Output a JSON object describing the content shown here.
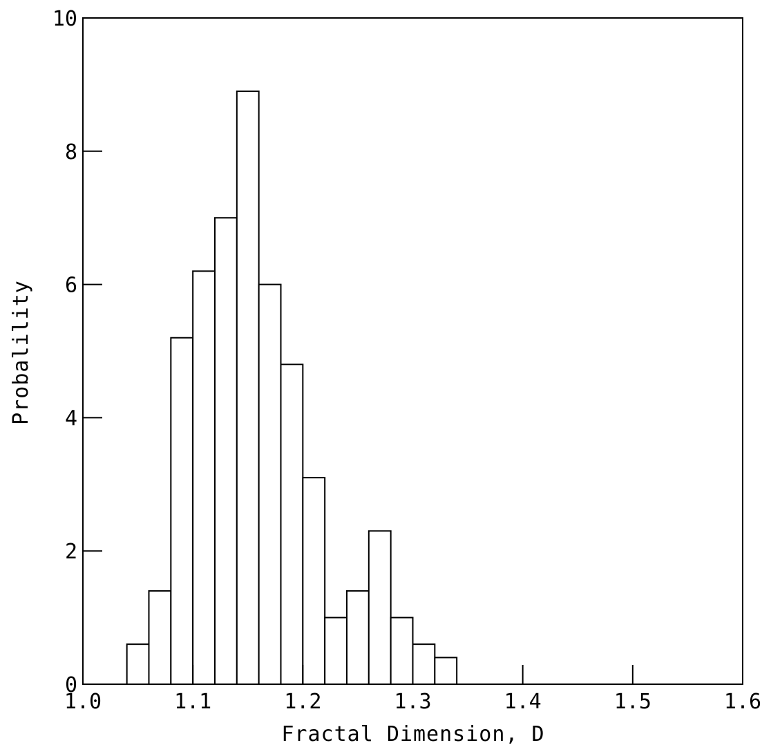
{
  "chart_data": {
    "type": "bar",
    "title": "",
    "xlabel": "Fractal Dimension, D",
    "ylabel": "Probalility",
    "xlim": [
      1.0,
      1.6
    ],
    "ylim": [
      0,
      10
    ],
    "xticks": [
      1.0,
      1.1,
      1.2,
      1.3,
      1.4,
      1.5,
      1.6
    ],
    "xtick_labels": [
      "1.0",
      "1.1",
      "1.2",
      "1.3",
      "1.4",
      "1.5",
      "1.6"
    ],
    "yticks": [
      0,
      2,
      4,
      6,
      8,
      10
    ],
    "ytick_labels": [
      "0",
      "2",
      "4",
      "6",
      "8",
      "10"
    ],
    "grid": false,
    "bin_width": 0.02,
    "bins": [
      {
        "x0": 1.04,
        "x1": 1.06,
        "value": 0.6
      },
      {
        "x0": 1.06,
        "x1": 1.08,
        "value": 1.4
      },
      {
        "x0": 1.08,
        "x1": 1.1,
        "value": 5.2
      },
      {
        "x0": 1.1,
        "x1": 1.12,
        "value": 6.2
      },
      {
        "x0": 1.12,
        "x1": 1.14,
        "value": 7.0
      },
      {
        "x0": 1.14,
        "x1": 1.16,
        "value": 8.9
      },
      {
        "x0": 1.16,
        "x1": 1.18,
        "value": 6.0
      },
      {
        "x0": 1.18,
        "x1": 1.2,
        "value": 4.8
      },
      {
        "x0": 1.2,
        "x1": 1.22,
        "value": 3.1
      },
      {
        "x0": 1.22,
        "x1": 1.24,
        "value": 1.0
      },
      {
        "x0": 1.24,
        "x1": 1.26,
        "value": 1.4
      },
      {
        "x0": 1.26,
        "x1": 1.28,
        "value": 2.3
      },
      {
        "x0": 1.28,
        "x1": 1.3,
        "value": 1.0
      },
      {
        "x0": 1.3,
        "x1": 1.32,
        "value": 0.6
      },
      {
        "x0": 1.32,
        "x1": 1.34,
        "value": 0.4
      }
    ]
  }
}
